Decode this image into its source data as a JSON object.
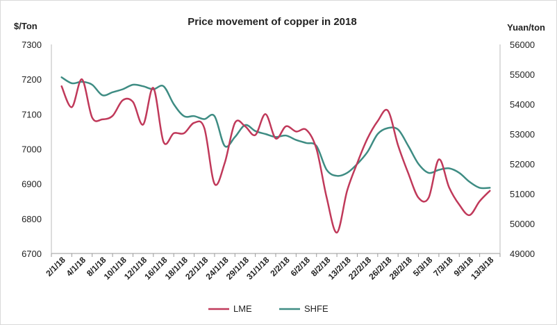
{
  "chart_data": {
    "type": "line",
    "title": "Price movement of copper in 2018",
    "y_left_unit": "$/Ton",
    "y_right_unit": "Yuan/ton",
    "y_left_range": [
      6700,
      7300
    ],
    "y_right_range": [
      49000,
      56000
    ],
    "y_left_ticks": [
      "6700",
      "6800",
      "6900",
      "7000",
      "7100",
      "7200",
      "7300"
    ],
    "y_right_ticks": [
      "49000",
      "50000",
      "51000",
      "52000",
      "53000",
      "54000",
      "55000",
      "56000"
    ],
    "grid": false,
    "legend_position": "bottom",
    "x": [
      "2/1/18",
      "4/1/18",
      "8/1/18",
      "10/1/18",
      "12/1/18",
      "16/1/18",
      "18/1/18",
      "22/1/18",
      "24/1/18",
      "29/1/18",
      "31/1/18",
      "2/2/18",
      "6/2/18",
      "8/2/18",
      "13/2/18",
      "22/2/18",
      "26/2/18",
      "28/2/18",
      "5/3/18",
      "7/3/18",
      "9/3/18",
      "13/3/18"
    ],
    "series": [
      {
        "name": "LME",
        "axis": "left",
        "color": "#c0395a",
        "x": [
          0,
          0.5,
          1,
          1.5,
          2,
          2.5,
          3,
          3.5,
          4,
          4.5,
          5,
          5.5,
          6,
          6.5,
          7,
          7.5,
          8,
          8.5,
          9,
          9.5,
          10,
          10.5,
          11,
          11.5,
          12,
          12.5,
          13,
          13.5,
          14,
          14.5,
          15,
          15.5,
          16,
          16.5,
          17,
          17.5,
          18,
          18.5,
          19,
          19.5,
          20,
          20.5,
          21
        ],
        "values": [
          7180,
          7120,
          7200,
          7090,
          7085,
          7095,
          7140,
          7135,
          7070,
          7175,
          7020,
          7045,
          7045,
          7075,
          7060,
          6900,
          6960,
          7075,
          7065,
          7040,
          7100,
          7030,
          7065,
          7050,
          7055,
          7000,
          6860,
          6760,
          6880,
          6960,
          7030,
          7080,
          7110,
          7010,
          6930,
          6860,
          6860,
          6970,
          6890,
          6840,
          6810,
          6850,
          6880
        ]
      },
      {
        "name": "SHFE",
        "axis": "right",
        "color": "#3e8c83",
        "x": [
          0,
          0.5,
          1,
          1.5,
          2,
          2.5,
          3,
          3.5,
          4,
          4.5,
          5,
          5.5,
          6,
          6.5,
          7,
          7.5,
          8,
          8.5,
          9,
          9.5,
          10,
          10.5,
          11,
          11.5,
          12,
          12.5,
          13,
          13.5,
          14,
          14.5,
          15,
          15.5,
          16,
          16.5,
          17,
          17.5,
          18,
          18.5,
          19,
          19.5,
          20,
          20.5,
          21
        ],
        "values": [
          54900,
          54700,
          54750,
          54650,
          54300,
          54400,
          54500,
          54650,
          54600,
          54500,
          54600,
          54000,
          53600,
          53600,
          53500,
          53600,
          52600,
          52900,
          53300,
          53100,
          53000,
          52900,
          52950,
          52800,
          52700,
          52600,
          51800,
          51600,
          51700,
          52000,
          52400,
          53000,
          53200,
          53150,
          52600,
          52000,
          51700,
          51800,
          51850,
          51700,
          51400,
          51200,
          51200
        ]
      }
    ]
  }
}
